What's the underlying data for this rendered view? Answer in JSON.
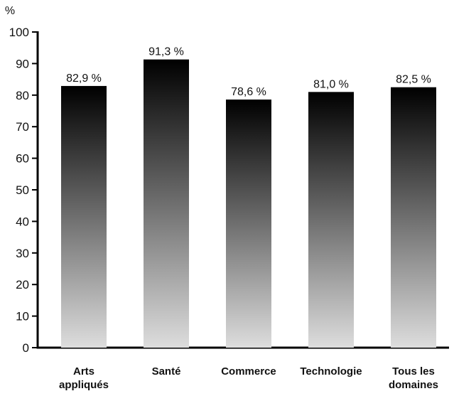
{
  "chart_data": {
    "type": "bar",
    "unit_label": "%",
    "categories": [
      [
        "Arts",
        "appliqués"
      ],
      [
        "Santé"
      ],
      [
        "Commerce"
      ],
      [
        "Technologie"
      ],
      [
        "Tous les",
        "domaines"
      ]
    ],
    "values": [
      82.9,
      91.3,
      78.6,
      81.0,
      82.5
    ],
    "data_labels": [
      "82,9 %",
      "91,3 %",
      "78,6 %",
      "81,0 %",
      "82,5 %"
    ],
    "ylim": [
      0,
      100
    ],
    "yticks": [
      0,
      10,
      20,
      30,
      40,
      50,
      60,
      70,
      80,
      90,
      100
    ],
    "grid": false,
    "bar_gradient": {
      "top": "#000000",
      "bottom": "#dddddd"
    }
  }
}
